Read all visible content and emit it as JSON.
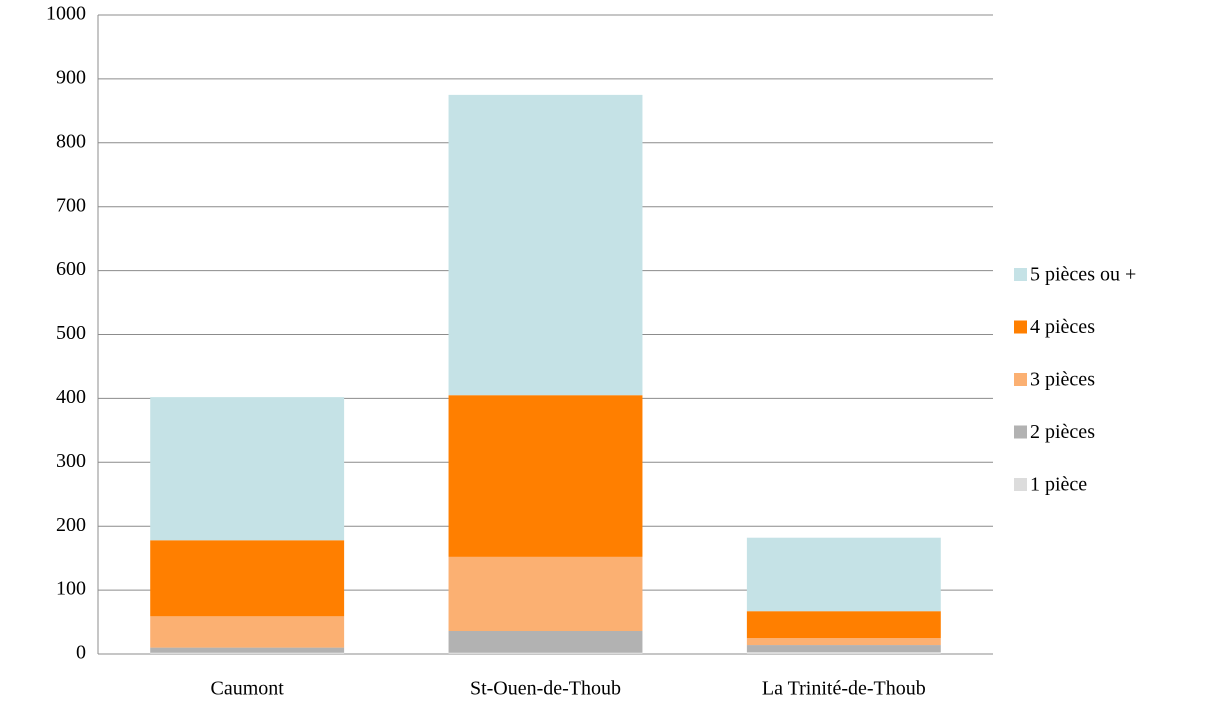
{
  "chart_data": {
    "type": "stacked_bar",
    "categories": [
      "Caumont",
      "St-Ouen-de-Thoub",
      "La Trinité-de-Thoub"
    ],
    "series": [
      {
        "name": "1 pièce",
        "color": "#dcdcdc",
        "values": [
          2,
          2,
          3
        ]
      },
      {
        "name": "2 pièces",
        "color": "#b2b2b2",
        "values": [
          8,
          34,
          11
        ]
      },
      {
        "name": "3 pièces",
        "color": "#fbb072",
        "values": [
          49,
          116,
          11
        ]
      },
      {
        "name": "4 pièces",
        "color": "#ff7f00",
        "values": [
          119,
          253,
          42
        ]
      },
      {
        "name": "5 pièces ou +",
        "color": "#c5e2e6",
        "values": [
          224,
          470,
          115
        ]
      }
    ],
    "ylim": [
      0,
      1000
    ],
    "yticks": [
      0,
      100,
      200,
      300,
      400,
      500,
      600,
      700,
      800,
      900,
      1000
    ],
    "grid": true,
    "legend": "right"
  }
}
